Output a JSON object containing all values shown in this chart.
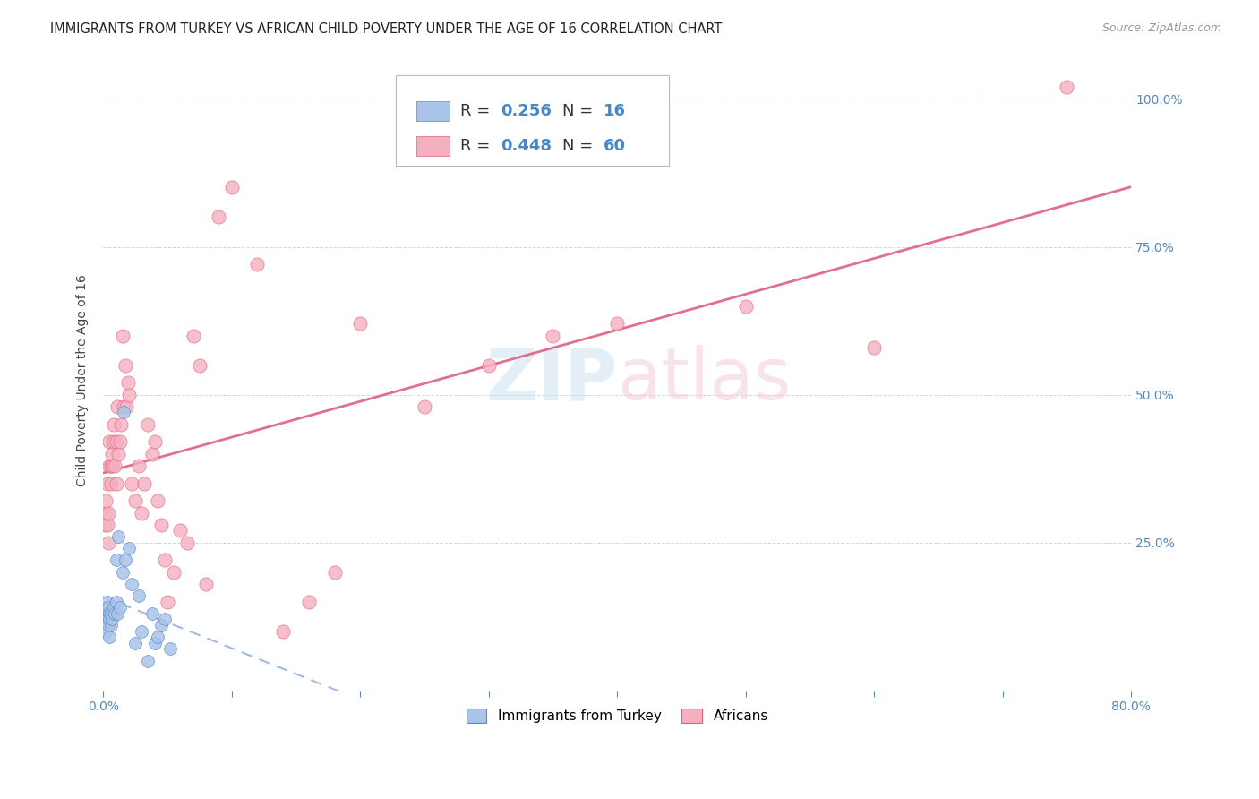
{
  "title": "IMMIGRANTS FROM TURKEY VS AFRICAN CHILD POVERTY UNDER THE AGE OF 16 CORRELATION CHART",
  "source": "Source: ZipAtlas.com",
  "ylabel": "Child Poverty Under the Age of 16",
  "xlim": [
    0.0,
    0.8
  ],
  "ylim": [
    0.0,
    1.05
  ],
  "xticks": [
    0.0,
    0.1,
    0.2,
    0.3,
    0.4,
    0.5,
    0.6,
    0.7,
    0.8
  ],
  "xticklabels": [
    "0.0%",
    "",
    "",
    "",
    "",
    "",
    "",
    "",
    "80.0%"
  ],
  "yticks_right": [
    0.25,
    0.5,
    0.75,
    1.0
  ],
  "yticklabels_right": [
    "25.0%",
    "50.0%",
    "75.0%",
    "100.0%"
  ],
  "legend_labels": [
    "Immigrants from Turkey",
    "Africans"
  ],
  "watermark_zip": "ZIP",
  "watermark_atlas": "atlas",
  "blue_color": "#aac4e8",
  "blue_edge_color": "#5588cc",
  "pink_color": "#f5b0c0",
  "pink_edge_color": "#e06080",
  "blue_line_color": "#88aadd",
  "pink_line_color": "#e06888",
  "scatter_size_blue": 100,
  "scatter_size_pink": 120,
  "grid_color": "#cccccc",
  "background_color": "#ffffff",
  "title_fontsize": 10.5,
  "ylabel_fontsize": 10,
  "tick_fontsize": 10,
  "legend_fontsize": 13,
  "source_fontsize": 9,
  "turkey_x": [
    0.001,
    0.002,
    0.002,
    0.003,
    0.003,
    0.003,
    0.004,
    0.004,
    0.005,
    0.005,
    0.005,
    0.006,
    0.006,
    0.007,
    0.008,
    0.009,
    0.01,
    0.01,
    0.011,
    0.012,
    0.013,
    0.015,
    0.016,
    0.017,
    0.02,
    0.022,
    0.025,
    0.028,
    0.03,
    0.035,
    0.038,
    0.04,
    0.042,
    0.045,
    0.048,
    0.052
  ],
  "turkey_y": [
    0.14,
    0.12,
    0.1,
    0.13,
    0.12,
    0.15,
    0.11,
    0.14,
    0.09,
    0.13,
    0.12,
    0.11,
    0.13,
    0.12,
    0.14,
    0.13,
    0.22,
    0.15,
    0.13,
    0.26,
    0.14,
    0.2,
    0.47,
    0.22,
    0.24,
    0.18,
    0.08,
    0.16,
    0.1,
    0.05,
    0.13,
    0.08,
    0.09,
    0.11,
    0.12,
    0.07
  ],
  "africa_x": [
    0.001,
    0.002,
    0.002,
    0.003,
    0.003,
    0.004,
    0.004,
    0.005,
    0.005,
    0.006,
    0.006,
    0.007,
    0.007,
    0.008,
    0.008,
    0.009,
    0.01,
    0.01,
    0.011,
    0.012,
    0.013,
    0.014,
    0.015,
    0.016,
    0.017,
    0.018,
    0.019,
    0.02,
    0.022,
    0.025,
    0.028,
    0.03,
    0.032,
    0.035,
    0.038,
    0.04,
    0.042,
    0.045,
    0.048,
    0.05,
    0.055,
    0.06,
    0.065,
    0.07,
    0.075,
    0.08,
    0.09,
    0.1,
    0.12,
    0.14,
    0.16,
    0.18,
    0.2,
    0.25,
    0.3,
    0.35,
    0.4,
    0.5,
    0.6,
    0.75
  ],
  "africa_y": [
    0.28,
    0.3,
    0.32,
    0.35,
    0.28,
    0.3,
    0.25,
    0.38,
    0.42,
    0.38,
    0.35,
    0.38,
    0.4,
    0.42,
    0.45,
    0.38,
    0.42,
    0.35,
    0.48,
    0.4,
    0.42,
    0.45,
    0.6,
    0.48,
    0.55,
    0.48,
    0.52,
    0.5,
    0.35,
    0.32,
    0.38,
    0.3,
    0.35,
    0.45,
    0.4,
    0.42,
    0.32,
    0.28,
    0.22,
    0.15,
    0.2,
    0.27,
    0.25,
    0.6,
    0.55,
    0.18,
    0.8,
    0.85,
    0.72,
    0.1,
    0.15,
    0.2,
    0.62,
    0.48,
    0.55,
    0.6,
    0.62,
    0.65,
    0.58,
    1.02
  ]
}
